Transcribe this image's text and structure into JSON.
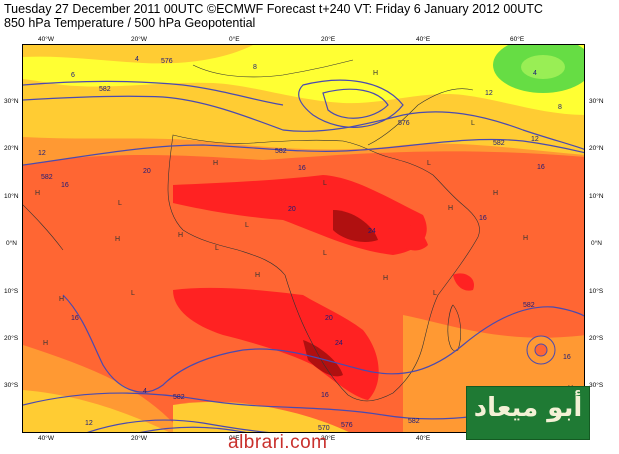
{
  "header": {
    "line1": "Tuesday 27 December 2011 00UTC ©ECMWF Forecast t+240 VT: Friday 6 January 2012 00UTC",
    "line2": "850 hPa Temperature / 500 hPa Geopotential"
  },
  "axes": {
    "lon_top": [
      "40°W",
      "20°W",
      "0°E",
      "20°E",
      "40°E",
      "60°E"
    ],
    "lon_bottom": [
      "40°W",
      "20°W",
      "0°E",
      "20°E",
      "40°E",
      "60°E"
    ],
    "lat_left": [
      "30°N",
      "20°N",
      "10°N",
      "0°N",
      "10°S",
      "20°S",
      "30°S"
    ],
    "lat_right": [
      "30°N",
      "20°N",
      "10°N",
      "0°N",
      "10°S",
      "20°S",
      "30°S"
    ]
  },
  "contour_labels": {
    "temps": [
      "6",
      "4",
      "8",
      "12",
      "16",
      "16",
      "20",
      "20",
      "24",
      "24",
      "20",
      "16",
      "16",
      "12",
      "16",
      "12",
      "16",
      "16",
      "4",
      "8",
      "12",
      "4"
    ],
    "heights": [
      "582",
      "576",
      "582",
      "582",
      "582",
      "582",
      "582",
      "576",
      "582",
      "570",
      "576"
    ],
    "pressure_marks": [
      "H",
      "H",
      "H",
      "L",
      "H",
      "L",
      "L",
      "H",
      "L",
      "H",
      "H",
      "H",
      "L",
      "H",
      "L",
      "H",
      "H",
      "L",
      "L",
      "H",
      "L",
      "H"
    ]
  },
  "colors": {
    "yellow": "#ffff33",
    "light_orange": "#ffcc33",
    "orange": "#ff9933",
    "dark_orange": "#ff6633",
    "red": "#ff2222",
    "dark_red": "#b01010",
    "green": "#66dd44",
    "contour": "#4a4ab0",
    "coast": "#333333"
  },
  "watermark": "albrari.com",
  "logo": "أبو ميعاد"
}
